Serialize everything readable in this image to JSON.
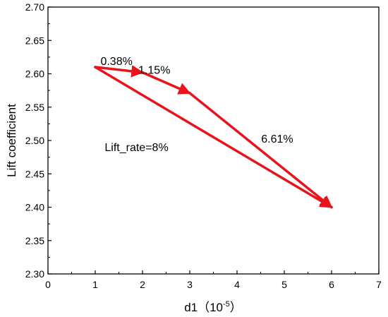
{
  "chart_data": {
    "type": "line",
    "title": "",
    "xlabel": {
      "prefix": "d1（10",
      "exponent": "-5",
      "suffix": "）"
    },
    "ylabel": "Lift coefficient",
    "xlim": [
      0,
      7
    ],
    "ylim": [
      2.3,
      2.7
    ],
    "xticks": [
      0,
      1,
      2,
      3,
      4,
      5,
      6,
      7
    ],
    "xtick_labels": [
      "0",
      "1",
      "2",
      "3",
      "4",
      "5",
      "6",
      "7"
    ],
    "yticks": [
      2.3,
      2.35,
      2.4,
      2.45,
      2.5,
      2.55,
      2.6,
      2.65,
      2.7
    ],
    "ytick_labels": [
      "2.30",
      "2.35",
      "2.40",
      "2.45",
      "2.50",
      "2.55",
      "2.60",
      "2.65",
      "2.70"
    ],
    "grid": false,
    "arrow_color": "#e8141c",
    "arrows": [
      {
        "from": [
          1.0,
          2.61
        ],
        "to": [
          2.0,
          2.602
        ],
        "label": "0.38%",
        "label_pos": [
          1.45,
          2.613
        ]
      },
      {
        "from": [
          2.0,
          2.602
        ],
        "to": [
          3.0,
          2.571
        ],
        "label": "1.15%",
        "label_pos": [
          2.25,
          2.6
        ]
      },
      {
        "from": [
          3.0,
          2.571
        ],
        "to": [
          6.0,
          2.4
        ],
        "label": "6.61%",
        "label_pos": [
          4.85,
          2.497
        ]
      },
      {
        "from": [
          1.0,
          2.61
        ],
        "to": [
          6.0,
          2.4
        ],
        "label": "",
        "label_pos": null
      }
    ],
    "annotations": [
      {
        "text": "Lift_rate=8%",
        "x": 1.2,
        "y": 2.484
      }
    ]
  }
}
